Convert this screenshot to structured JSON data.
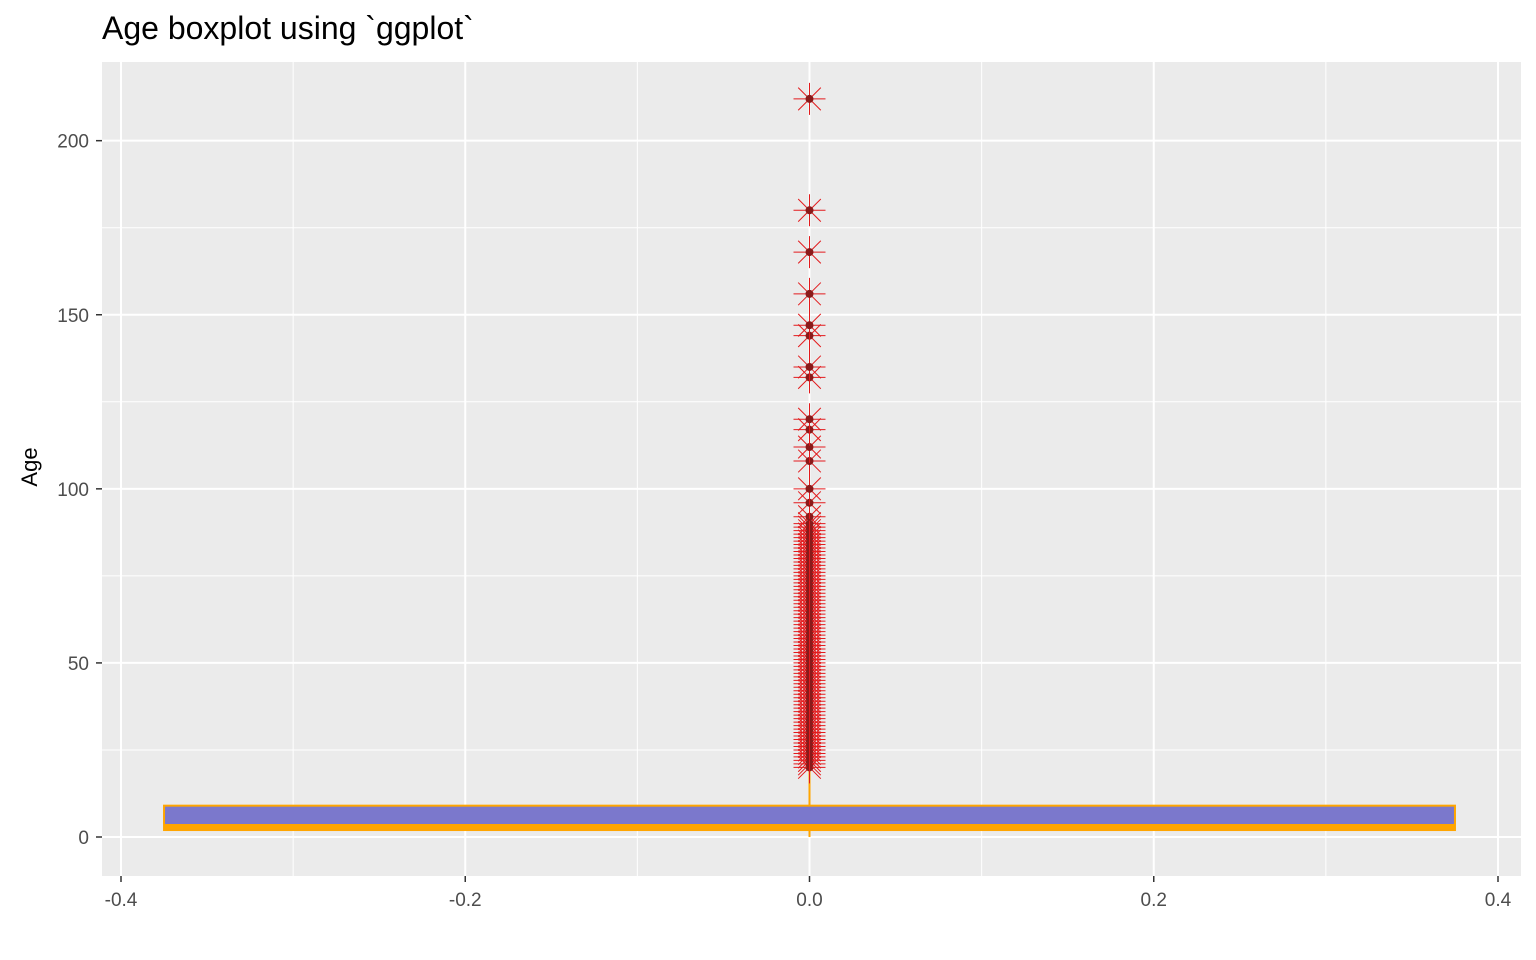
{
  "chart_data": {
    "type": "boxplot",
    "title": "Age boxplot using `ggplot`",
    "xlabel": "",
    "ylabel": "Age",
    "xlim": [
      -0.4,
      0.4
    ],
    "ylim": [
      -10,
      222
    ],
    "x_ticks": [
      -0.4,
      -0.2,
      0.0,
      0.2,
      0.4
    ],
    "x_tick_labels": [
      "-0.4",
      "-0.2",
      "0.0",
      "0.2",
      "0.4"
    ],
    "y_ticks": [
      0,
      50,
      100,
      150,
      200
    ],
    "y_tick_labels": [
      "0",
      "50",
      "100",
      "150",
      "200"
    ],
    "grid": true,
    "panel_background": "#EBEBEB",
    "box": {
      "x_center": 0.0,
      "x_min": -0.375,
      "x_max": 0.375,
      "lower_whisker": 0,
      "q1": 2,
      "median": 3,
      "q3": 9,
      "upper_whisker": 19,
      "fill": "#7B78CC",
      "outline": "#FFA500"
    },
    "outliers": {
      "x": 0.0,
      "marker": "asterisk",
      "color": "#E31A1C",
      "point_color": "#8B1A1A",
      "values": [
        20,
        21,
        22,
        23,
        24,
        25,
        26,
        27,
        28,
        29,
        30,
        31,
        32,
        33,
        34,
        35,
        36,
        37,
        38,
        39,
        40,
        41,
        42,
        43,
        44,
        45,
        46,
        47,
        48,
        49,
        50,
        51,
        52,
        53,
        54,
        55,
        56,
        57,
        58,
        59,
        60,
        61,
        62,
        63,
        64,
        65,
        66,
        67,
        68,
        69,
        70,
        71,
        72,
        73,
        74,
        75,
        76,
        77,
        78,
        79,
        80,
        81,
        82,
        83,
        84,
        85,
        86,
        87,
        88,
        89,
        90,
        92,
        96,
        100,
        108,
        112,
        117,
        120,
        132,
        135,
        144,
        147,
        156,
        168,
        180,
        212
      ]
    }
  }
}
